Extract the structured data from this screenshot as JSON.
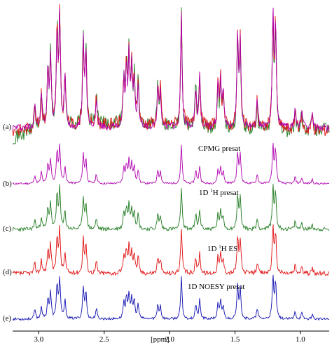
{
  "chart_data": {
    "type": "line",
    "title": "",
    "xlabel": "[ppm]",
    "ylabel": "",
    "xlim": [
      3.2,
      0.78
    ],
    "x_reversed": true,
    "x_ticks": [
      "3.0",
      "2.5",
      "2.0",
      "1.5",
      "1.0"
    ],
    "x_tick_values": [
      3.0,
      2.5,
      2.0,
      1.5,
      1.0
    ],
    "grid": false,
    "legend": "none",
    "series": [
      {
        "name": "CPMG presat",
        "panel_label": "(b)",
        "color": "#b000b0"
      },
      {
        "name": "1D 1H presat",
        "panel_label": "(c)",
        "color": "#1f7a1f"
      },
      {
        "name": "1D 1H ES",
        "panel_label": "(d)",
        "color": "#e01010"
      },
      {
        "name": "1D NOESY presat",
        "panel_label": "(e)",
        "color": "#1010b0"
      }
    ],
    "overlay_panel": {
      "panel_label": "(a)",
      "series": [
        "1D 1H presat",
        "1D 1H ES",
        "CPMG presat"
      ]
    },
    "peaks_ppm": [
      {
        "x": 3.03,
        "rel": 0.22
      },
      {
        "x": 2.98,
        "rel": 0.3
      },
      {
        "x": 2.93,
        "rel": 0.5
      },
      {
        "x": 2.91,
        "rel": 0.62
      },
      {
        "x": 2.86,
        "rel": 0.85
      },
      {
        "x": 2.84,
        "rel": 0.95
      },
      {
        "x": 2.8,
        "rel": 0.45
      },
      {
        "x": 2.66,
        "rel": 0.75
      },
      {
        "x": 2.64,
        "rel": 0.65
      },
      {
        "x": 2.56,
        "rel": 0.25
      },
      {
        "x": 2.35,
        "rel": 0.4
      },
      {
        "x": 2.33,
        "rel": 0.5
      },
      {
        "x": 2.31,
        "rel": 0.6
      },
      {
        "x": 2.29,
        "rel": 0.48
      },
      {
        "x": 2.27,
        "rel": 0.42
      },
      {
        "x": 2.24,
        "rel": 0.35
      },
      {
        "x": 2.09,
        "rel": 0.35
      },
      {
        "x": 2.07,
        "rel": 0.3
      },
      {
        "x": 1.91,
        "rel": 1.0
      },
      {
        "x": 1.8,
        "rel": 0.35
      },
      {
        "x": 1.77,
        "rel": 0.45
      },
      {
        "x": 1.63,
        "rel": 0.35
      },
      {
        "x": 1.61,
        "rel": 0.4
      },
      {
        "x": 1.59,
        "rel": 0.3
      },
      {
        "x": 1.48,
        "rel": 0.8
      },
      {
        "x": 1.46,
        "rel": 0.75
      },
      {
        "x": 1.33,
        "rel": 0.25
      },
      {
        "x": 1.21,
        "rel": 1.0
      },
      {
        "x": 1.19,
        "rel": 0.9
      },
      {
        "x": 1.04,
        "rel": 0.18
      },
      {
        "x": 0.99,
        "rel": 0.15
      },
      {
        "x": 0.91,
        "rel": 0.12
      }
    ]
  }
}
